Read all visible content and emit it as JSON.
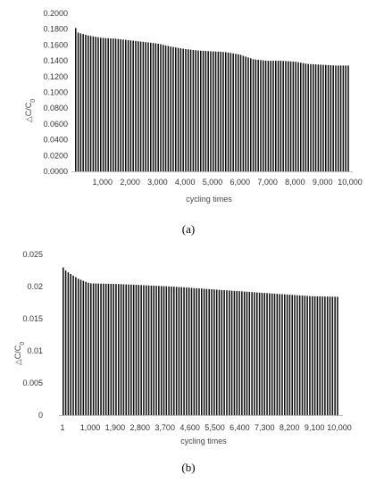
{
  "chart_data": [
    {
      "type": "bar",
      "panel_label": "(a)",
      "xlabel": "cycling times",
      "ylabel": "△C/C",
      "ylabel_subscript": "0",
      "ylim": [
        0,
        0.2
      ],
      "xlim": [
        0,
        10000
      ],
      "grid": false,
      "y_ticks": [
        "0.0000",
        "0.0200",
        "0.0400",
        "0.0600",
        "0.0800",
        "0.1000",
        "0.1200",
        "0.1400",
        "0.1600",
        "0.1800",
        "0.2000"
      ],
      "y_tick_values": [
        0,
        0.02,
        0.04,
        0.06,
        0.08,
        0.1,
        0.12,
        0.14,
        0.16,
        0.18,
        0.2
      ],
      "x_ticks": [
        "1,000",
        "2,000",
        "3,000",
        "4,000",
        "5,000",
        "6,000",
        "7,000",
        "8,000",
        "9,000",
        "10,000"
      ],
      "x_tick_values": [
        1000,
        2000,
        3000,
        4000,
        5000,
        6000,
        7000,
        8000,
        9000,
        10000
      ],
      "bar_count": 110,
      "bar_color": "#111111",
      "envelope_x": [
        0,
        100,
        500,
        1000,
        1500,
        2000,
        2500,
        3000,
        3500,
        4000,
        4500,
        5000,
        5500,
        6000,
        6500,
        7000,
        7500,
        8000,
        8500,
        9000,
        9500,
        10000
      ],
      "envelope_y": [
        0.186,
        0.176,
        0.172,
        0.169,
        0.168,
        0.166,
        0.164,
        0.162,
        0.158,
        0.155,
        0.153,
        0.152,
        0.151,
        0.148,
        0.142,
        0.14,
        0.14,
        0.139,
        0.136,
        0.135,
        0.134,
        0.134
      ]
    },
    {
      "type": "bar",
      "panel_label": "(b)",
      "xlabel": "cycling times",
      "ylabel": "△C/C",
      "ylabel_subscript": "0",
      "ylim": [
        0,
        0.025
      ],
      "xlim": [
        1,
        10000
      ],
      "grid": false,
      "y_ticks": [
        "0",
        "0.005",
        "0.01",
        "0.015",
        "0.02",
        "0.025"
      ],
      "y_tick_values": [
        0,
        0.005,
        0.01,
        0.015,
        0.02,
        0.025
      ],
      "x_ticks": [
        "1",
        "1,000",
        "1,900",
        "2,800",
        "3,700",
        "4,600",
        "5,500",
        "6,400",
        "7,300",
        "8,200",
        "9,100",
        "10,000"
      ],
      "x_tick_values": [
        1,
        1000,
        1900,
        2800,
        3700,
        4600,
        5500,
        6400,
        7300,
        8200,
        9100,
        10000
      ],
      "bar_count": 110,
      "bar_color": "#111111",
      "envelope_x": [
        1,
        100,
        300,
        600,
        1000,
        2000,
        3000,
        4000,
        5000,
        6000,
        7000,
        8000,
        9000,
        10000
      ],
      "envelope_y": [
        0.0233,
        0.0226,
        0.022,
        0.0212,
        0.0205,
        0.0204,
        0.0202,
        0.02,
        0.0197,
        0.0194,
        0.0191,
        0.0188,
        0.0185,
        0.0184
      ]
    }
  ]
}
